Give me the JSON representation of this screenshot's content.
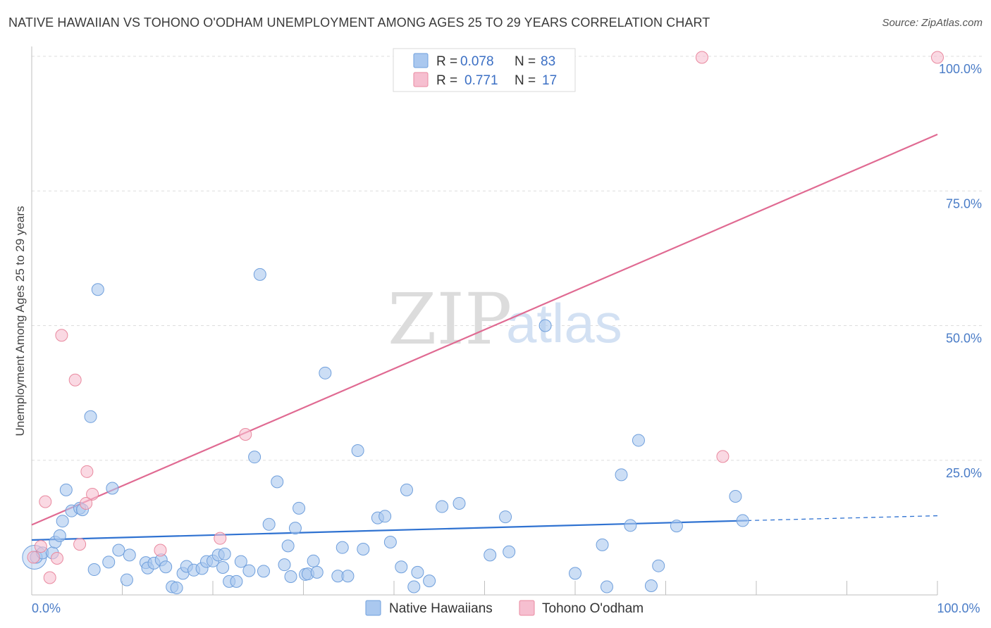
{
  "header": {
    "title": "NATIVE HAWAIIAN VS TOHONO O'ODHAM UNEMPLOYMENT AMONG AGES 25 TO 29 YEARS CORRELATION CHART",
    "source": "Source: ZipAtlas.com"
  },
  "watermark": {
    "zip": "ZIP",
    "atlas": "atlas"
  },
  "colors": {
    "blue_fill": "#aac8ef",
    "blue_stroke": "#6f9fdc",
    "blue_line": "#2f72d1",
    "pink_fill": "#f6bfd0",
    "pink_stroke": "#e9899f",
    "pink_line": "#e06a92",
    "tick_text": "#4a7cc7",
    "grid": "#dddddd"
  },
  "chart_data": {
    "type": "scatter",
    "title": "NATIVE HAWAIIAN VS TOHONO O'ODHAM UNEMPLOYMENT AMONG AGES 25 TO 29 YEARS CORRELATION CHART",
    "xlabel": "",
    "ylabel": "Unemployment Among Ages 25 to 29 years",
    "xlim": [
      0,
      100
    ],
    "ylim": [
      0,
      100
    ],
    "x_tick_labels": [
      {
        "value": 0,
        "label": "0.0%"
      },
      {
        "value": 100,
        "label": "100.0%"
      }
    ],
    "y_tick_labels": [
      {
        "value": 25,
        "label": "25.0%"
      },
      {
        "value": 50,
        "label": "50.0%"
      },
      {
        "value": 75,
        "label": "75.0%"
      },
      {
        "value": 100,
        "label": "100.0%"
      }
    ],
    "legend": {
      "position": "top-center",
      "rows": [
        {
          "r_label": "R =",
          "r_value": "0.078",
          "n_label": "N =",
          "n_value": "83"
        },
        {
          "r_label": "R =",
          "r_value": "0.771",
          "n_label": "N =",
          "n_value": "17"
        }
      ]
    },
    "series": [
      {
        "name": "Native Hawaiians",
        "color": "#aac8ef",
        "trend": {
          "x": [
            0,
            79
          ],
          "y": [
            10.2,
            13.8
          ],
          "dashed_to": [
            100,
            14.7
          ]
        },
        "points": [
          [
            0.5,
            7.0
          ],
          [
            1.2,
            7.8
          ],
          [
            2.3,
            7.8
          ],
          [
            2.6,
            9.8
          ],
          [
            3.1,
            11.0
          ],
          [
            3.4,
            13.7
          ],
          [
            3.8,
            19.5
          ],
          [
            4.4,
            15.6
          ],
          [
            5.3,
            16.1
          ],
          [
            5.6,
            15.8
          ],
          [
            6.5,
            33.1
          ],
          [
            7.3,
            56.7
          ],
          [
            6.9,
            4.7
          ],
          [
            8.5,
            6.1
          ],
          [
            8.9,
            19.8
          ],
          [
            9.6,
            8.3
          ],
          [
            10.5,
            2.8
          ],
          [
            10.8,
            7.4
          ],
          [
            12.6,
            6.0
          ],
          [
            12.8,
            5.0
          ],
          [
            13.5,
            5.9
          ],
          [
            14.3,
            6.5
          ],
          [
            14.8,
            5.2
          ],
          [
            15.5,
            1.5
          ],
          [
            16.0,
            1.3
          ],
          [
            16.7,
            4.0
          ],
          [
            17.1,
            5.3
          ],
          [
            17.9,
            4.6
          ],
          [
            18.8,
            4.9
          ],
          [
            19.3,
            6.2
          ],
          [
            20.0,
            6.3
          ],
          [
            20.6,
            7.4
          ],
          [
            21.3,
            7.6
          ],
          [
            21.1,
            5.1
          ],
          [
            21.8,
            2.5
          ],
          [
            22.6,
            2.5
          ],
          [
            23.1,
            6.2
          ],
          [
            24.0,
            4.5
          ],
          [
            24.6,
            25.6
          ],
          [
            25.2,
            59.5
          ],
          [
            25.6,
            4.4
          ],
          [
            26.2,
            13.1
          ],
          [
            27.1,
            21.0
          ],
          [
            27.9,
            5.6
          ],
          [
            28.3,
            9.1
          ],
          [
            28.6,
            3.4
          ],
          [
            29.1,
            12.4
          ],
          [
            29.5,
            16.1
          ],
          [
            30.2,
            3.8
          ],
          [
            30.5,
            3.9
          ],
          [
            31.1,
            6.3
          ],
          [
            31.5,
            4.2
          ],
          [
            32.4,
            41.2
          ],
          [
            33.8,
            3.5
          ],
          [
            34.3,
            8.8
          ],
          [
            34.9,
            3.5
          ],
          [
            36.0,
            26.8
          ],
          [
            36.6,
            8.5
          ],
          [
            38.2,
            14.3
          ],
          [
            39.0,
            14.6
          ],
          [
            39.6,
            9.8
          ],
          [
            40.8,
            5.2
          ],
          [
            41.4,
            19.5
          ],
          [
            42.2,
            1.5
          ],
          [
            42.6,
            4.2
          ],
          [
            43.9,
            2.6
          ],
          [
            45.3,
            16.4
          ],
          [
            47.2,
            17.0
          ],
          [
            50.6,
            7.4
          ],
          [
            52.3,
            14.5
          ],
          [
            52.7,
            8.0
          ],
          [
            56.7,
            50.0
          ],
          [
            60.0,
            4.0
          ],
          [
            63.0,
            9.3
          ],
          [
            63.5,
            1.5
          ],
          [
            65.1,
            22.3
          ],
          [
            66.1,
            12.9
          ],
          [
            67.0,
            28.7
          ],
          [
            68.4,
            1.7
          ],
          [
            69.2,
            5.4
          ],
          [
            71.2,
            12.8
          ],
          [
            77.7,
            18.3
          ],
          [
            78.5,
            13.8
          ]
        ]
      },
      {
        "name": "Tohono O'odham",
        "color": "#f6bfd0",
        "trend": {
          "x": [
            0,
            100
          ],
          "y": [
            13.0,
            85.5
          ]
        },
        "points": [
          [
            0.2,
            7.0
          ],
          [
            1.0,
            9.0
          ],
          [
            1.5,
            17.3
          ],
          [
            2.0,
            3.2
          ],
          [
            2.8,
            6.8
          ],
          [
            3.3,
            48.2
          ],
          [
            4.8,
            39.9
          ],
          [
            5.3,
            9.4
          ],
          [
            6.1,
            22.9
          ],
          [
            6.7,
            18.7
          ],
          [
            14.2,
            8.3
          ],
          [
            20.8,
            10.5
          ],
          [
            23.6,
            29.8
          ],
          [
            6.0,
            17.0
          ],
          [
            76.3,
            25.7
          ],
          [
            74.0,
            99.8
          ],
          [
            100.0,
            99.8
          ]
        ]
      }
    ],
    "bottom_legend": [
      {
        "label": "Native Hawaiians",
        "color": "#aac8ef"
      },
      {
        "label": "Tohono O'odham",
        "color": "#f6bfd0"
      }
    ]
  }
}
